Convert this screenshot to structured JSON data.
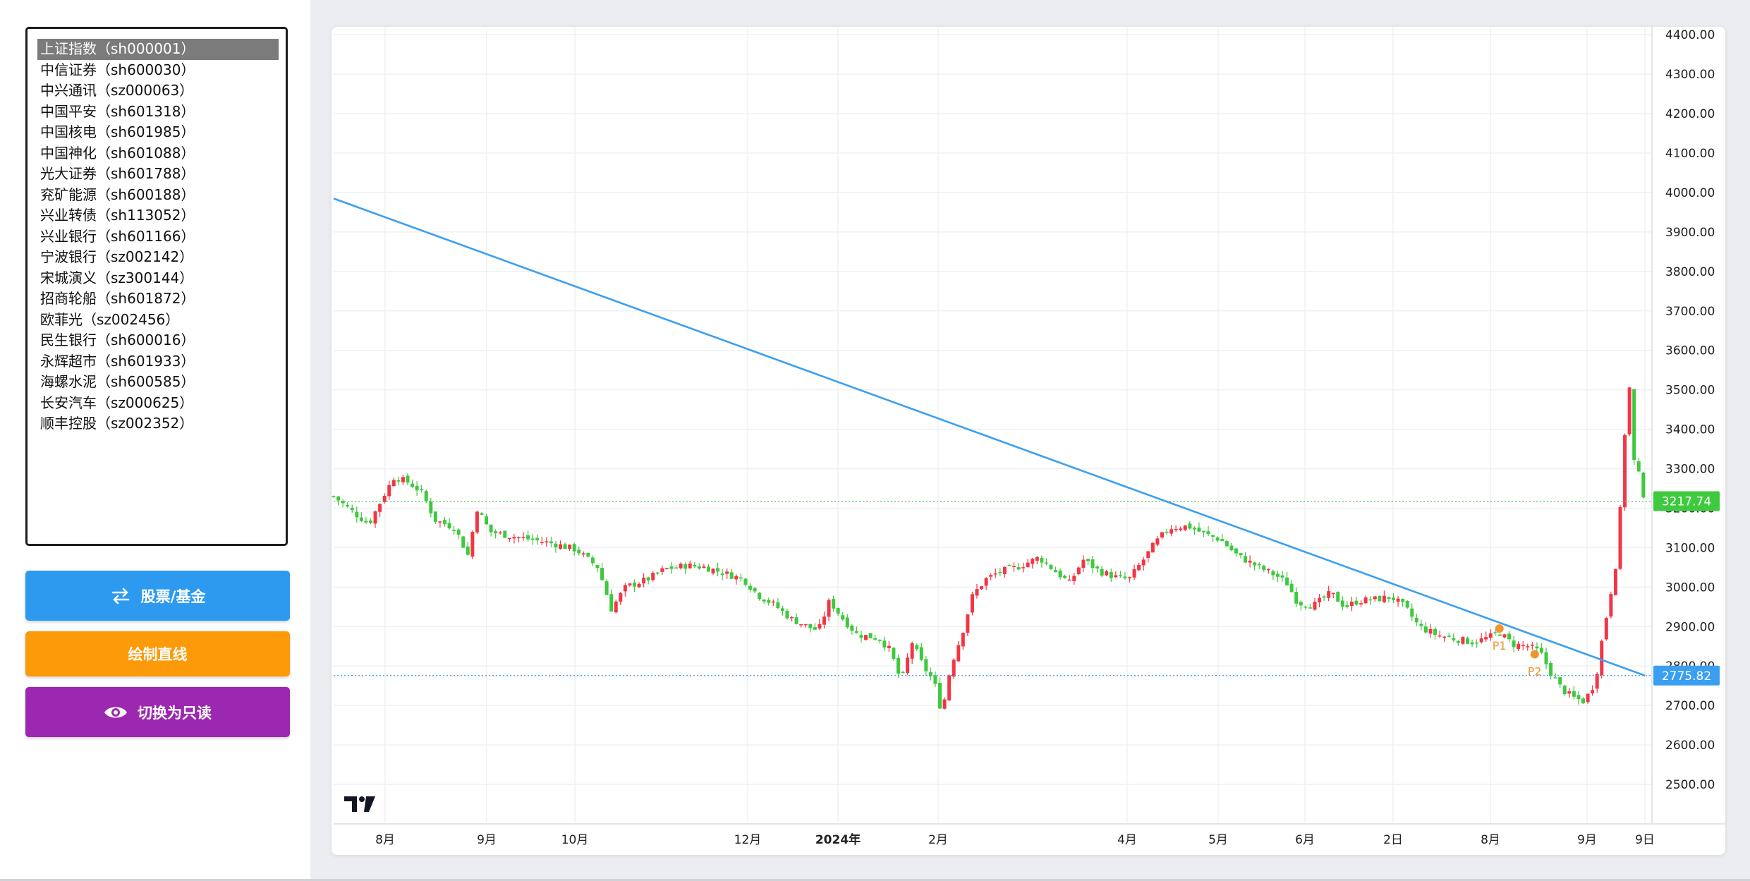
{
  "stock_list": {
    "selected_index": 0,
    "items": [
      "上证指数（sh000001）",
      "中信证券（sh600030）",
      "中兴通讯（sz000063）",
      "中国平安（sh601318）",
      "中国核电（sh601985）",
      "中国神化（sh601088）",
      "光大证券（sh601788）",
      "兖矿能源（sh600188）",
      "兴业转债（sh113052）",
      "兴业银行（sh601166）",
      "宁波银行（sz002142）",
      "宋城演义（sz300144）",
      "招商轮船（sh601872）",
      "欧菲光（sz002456）",
      "民生银行（sh600016）",
      "永辉超市（sh601933）",
      "海螺水泥（sh600585）",
      "长安汽车（sz000625）",
      "顺丰控股（sz002352）"
    ]
  },
  "buttons": {
    "switch": {
      "label": "股票/基金",
      "icon": "swap-arrows-icon",
      "color": "#2d9af0"
    },
    "draw_line": {
      "label": "绘制直线",
      "color": "#fd9a0a"
    },
    "readonly": {
      "label": "切换为只读",
      "icon": "eye-icon",
      "color": "#9c27b0"
    }
  },
  "chart": {
    "logo": "TV",
    "up_color": "#f23645",
    "down_color": "#3ec93e",
    "trend_line_color": "#3a9ff0",
    "x_labels": [
      "8月",
      "9月",
      "10月",
      "12月",
      "2024年",
      "2月",
      "4月",
      "5月",
      "6月",
      "2日",
      "8月",
      "9月",
      "9日"
    ],
    "y_ticks": [
      "4400.00",
      "4300.00",
      "4200.00",
      "4100.00",
      "4000.00",
      "3900.00",
      "3800.00",
      "3700.00",
      "3600.00",
      "3500.00",
      "3400.00",
      "3300.00",
      "3200.00",
      "3100.00",
      "3000.00",
      "2900.00",
      "2800.00",
      "2700.00",
      "2600.00",
      "2500.00"
    ],
    "last_price": "3217.74",
    "line_end_price": "2775.82",
    "markers": [
      "P1",
      "P2"
    ]
  },
  "chart_data": {
    "type": "candlestick",
    "y_range": [
      2400,
      4420
    ],
    "close_path": [
      [
        0,
        3230
      ],
      [
        20,
        3185
      ],
      [
        32,
        3160
      ],
      [
        45,
        3230
      ],
      [
        55,
        3280
      ],
      [
        68,
        3265
      ],
      [
        80,
        3240
      ],
      [
        92,
        3170
      ],
      [
        110,
        3150
      ],
      [
        122,
        3080
      ],
      [
        130,
        3200
      ],
      [
        142,
        3140
      ],
      [
        160,
        3130
      ],
      [
        180,
        3120
      ],
      [
        200,
        3110
      ],
      [
        220,
        3095
      ],
      [
        240,
        3050
      ],
      [
        252,
        2945
      ],
      [
        265,
        3000
      ],
      [
        285,
        3020
      ],
      [
        300,
        3045
      ],
      [
        320,
        3055
      ],
      [
        338,
        3050
      ],
      [
        355,
        3035
      ],
      [
        372,
        3020
      ],
      [
        385,
        2980
      ],
      [
        400,
        2955
      ],
      [
        415,
        2920
      ],
      [
        430,
        2900
      ],
      [
        440,
        2890
      ],
      [
        450,
        2965
      ],
      [
        462,
        2920
      ],
      [
        475,
        2880
      ],
      [
        495,
        2870
      ],
      [
        505,
        2840
      ],
      [
        515,
        2760
      ],
      [
        525,
        2860
      ],
      [
        535,
        2800
      ],
      [
        545,
        2760
      ],
      [
        552,
        2680
      ],
      [
        560,
        2800
      ],
      [
        570,
        2880
      ],
      [
        580,
        2980
      ],
      [
        592,
        3020
      ],
      [
        605,
        3040
      ],
      [
        620,
        3050
      ],
      [
        640,
        3075
      ],
      [
        655,
        3040
      ],
      [
        668,
        3010
      ],
      [
        680,
        3070
      ],
      [
        695,
        3040
      ],
      [
        710,
        3025
      ],
      [
        722,
        3020
      ],
      [
        735,
        3070
      ],
      [
        745,
        3110
      ],
      [
        758,
        3150
      ],
      [
        775,
        3155
      ],
      [
        790,
        3135
      ],
      [
        805,
        3120
      ],
      [
        820,
        3080
      ],
      [
        840,
        3050
      ],
      [
        855,
        3030
      ],
      [
        865,
        3010
      ],
      [
        875,
        2960
      ],
      [
        890,
        2955
      ],
      [
        905,
        2985
      ],
      [
        918,
        2950
      ],
      [
        930,
        2965
      ],
      [
        948,
        2970
      ],
      [
        960,
        2975
      ],
      [
        972,
        2950
      ],
      [
        985,
        2900
      ],
      [
        1000,
        2880
      ],
      [
        1015,
        2870
      ],
      [
        1035,
        2860
      ],
      [
        1050,
        2875
      ],
      [
        1058,
        2885
      ],
      [
        1070,
        2855
      ],
      [
        1085,
        2850
      ],
      [
        1095,
        2835
      ],
      [
        1105,
        2780
      ],
      [
        1115,
        2740
      ],
      [
        1125,
        2720
      ],
      [
        1135,
        2710
      ],
      [
        1145,
        2760
      ],
      [
        1150,
        2850
      ],
      [
        1158,
        2970
      ],
      [
        1165,
        3080
      ],
      [
        1170,
        3300
      ],
      [
        1175,
        3550
      ],
      [
        1180,
        3320
      ],
      [
        1185,
        3280
      ],
      [
        1190,
        3217.74
      ]
    ],
    "trend_line": {
      "start": [
        0,
        3985
      ],
      "end": [
        1190,
        2775.82
      ]
    },
    "markers": [
      {
        "label": "P1",
        "x": 1058,
        "price": 2895
      },
      {
        "label": "P2",
        "x": 1090,
        "price": 2830
      }
    ],
    "h_lines": [
      3217.74,
      2775.82
    ]
  }
}
